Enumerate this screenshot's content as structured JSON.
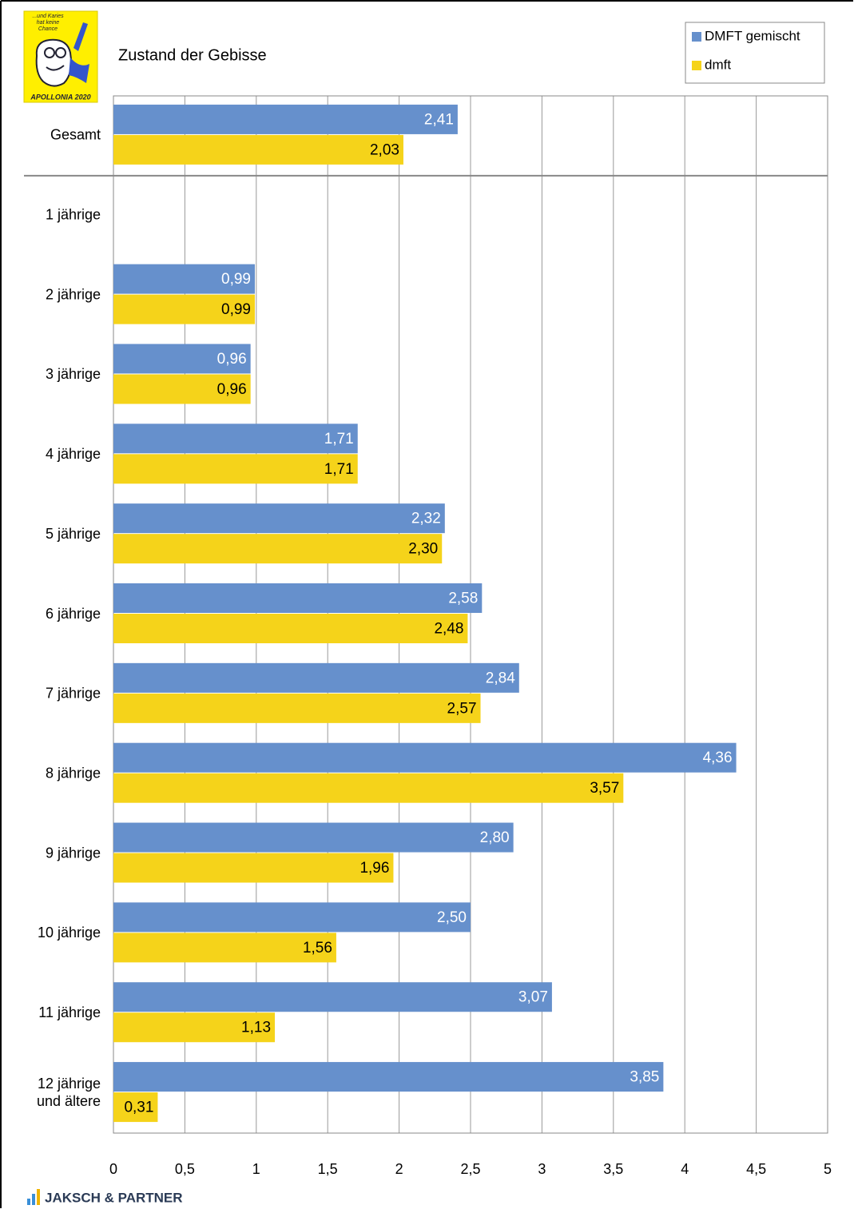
{
  "logo_text": [
    "...und Karies",
    "hat keine",
    "Chance"
  ],
  "logo_caption": "APOLLONIA 2020",
  "footer": "JAKSCH & PARTNER",
  "chart_data": {
    "type": "hbar",
    "title": "Zustand der Gebisse",
    "categories": [
      "Gesamt",
      "1 jährige",
      "2 jährige",
      "3 jährige",
      "4 jährige",
      "5 jährige",
      "6 jährige",
      "7 jährige",
      "8 jährige",
      "9 jährige",
      "10 jährige",
      "11 jährige",
      "12 jährige\nund ältere"
    ],
    "series": [
      {
        "name": "DMFT gemischt",
        "color": "#6690cc",
        "label_color": "#ffffff",
        "values": [
          2.41,
          null,
          0.99,
          0.96,
          1.71,
          2.32,
          2.58,
          2.84,
          4.36,
          2.8,
          2.5,
          3.07,
          3.85
        ],
        "value_labels": [
          "2,41",
          null,
          "0,99",
          "0,96",
          "1,71",
          "2,32",
          "2,58",
          "2,84",
          "4,36",
          "2,80",
          "2,50",
          "3,07",
          "3,85"
        ]
      },
      {
        "name": "dmft",
        "color": "#f5d31a",
        "label_color": "#000000",
        "values": [
          2.03,
          null,
          0.99,
          0.96,
          1.71,
          2.3,
          2.48,
          2.57,
          3.57,
          1.96,
          1.56,
          1.13,
          0.31
        ],
        "value_labels": [
          "2,03",
          null,
          "0,99",
          "0,96",
          "1,71",
          "2,30",
          "2,48",
          "2,57",
          "3,57",
          "1,96",
          "1,56",
          "1,13",
          "0,31"
        ]
      }
    ],
    "xlim": [
      0,
      5
    ],
    "xticks": [
      0,
      {
        "value": 0.5,
        "label": "0,5"
      },
      1,
      {
        "value": 1.5,
        "label": "1,5"
      },
      2,
      {
        "value": 2.5,
        "label": "2,5"
      },
      3,
      {
        "value": 3.5,
        "label": "3,5"
      },
      4,
      {
        "value": 4.5,
        "label": "4,5"
      },
      5
    ],
    "grid": true,
    "legend": "top-right"
  }
}
